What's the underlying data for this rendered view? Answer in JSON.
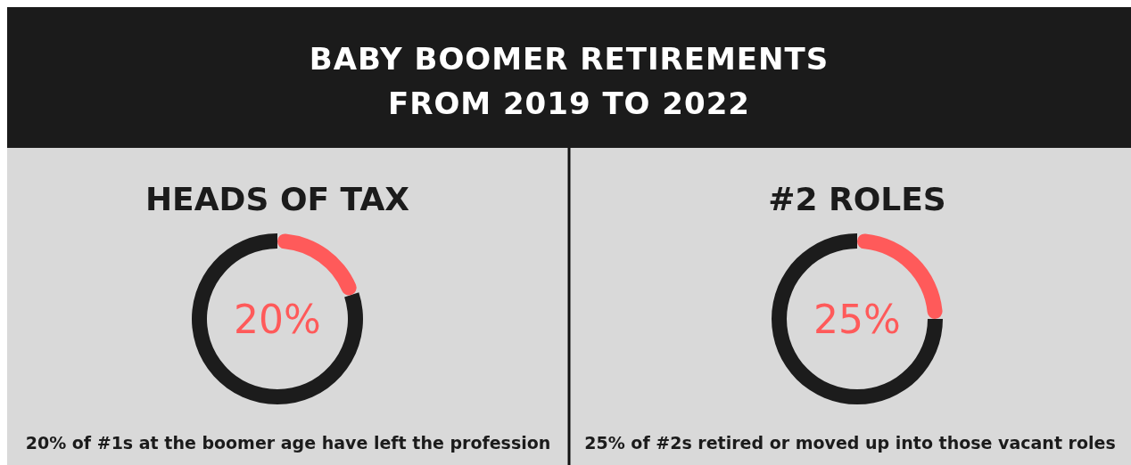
{
  "chart_data": [
    {
      "type": "other",
      "title": "BABY BOOMER RETIREMENTS FROM 2019 TO 2022"
    },
    {
      "type": "donut",
      "title": "HEADS OF TAX",
      "categories": [
        null,
        null
      ],
      "values": [
        20,
        80
      ],
      "colors": [
        "#ff5a5a",
        "#1c1c1c"
      ],
      "annotations": [
        "20%",
        "20% of #1s at the boomer age have left the profession"
      ]
    },
    {
      "type": "donut",
      "title": "#2 ROLES",
      "categories": [
        null,
        null
      ],
      "values": [
        25,
        75
      ],
      "colors": [
        "#ff5a5a",
        "#1c1c1c"
      ],
      "annotations": [
        "25%",
        "25% of #2s retired or moved up into those vacant roles"
      ]
    }
  ]
}
